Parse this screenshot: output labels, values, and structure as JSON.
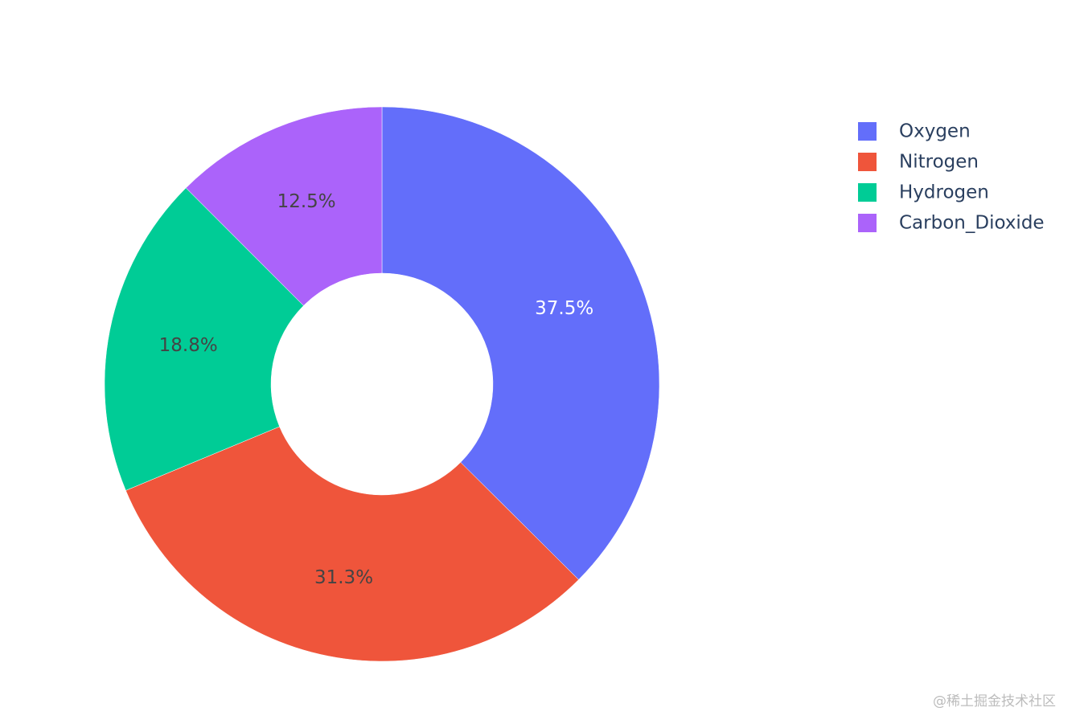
{
  "chart_data": {
    "type": "pie",
    "hole": 0.4,
    "direction": "clockwise",
    "sort": "descending",
    "labels": [
      "Oxygen",
      "Nitrogen",
      "Hydrogen",
      "Carbon_Dioxide"
    ],
    "values": [
      37.5,
      31.3,
      18.8,
      12.5
    ],
    "percent_labels": [
      "37.5%",
      "31.3%",
      "18.8%",
      "12.5%"
    ],
    "colors": [
      "#636efa",
      "#ef553b",
      "#00cc96",
      "#ab63fa"
    ],
    "text_colors": [
      "#ffffff",
      "#444444",
      "#444444",
      "#444444"
    ],
    "legend": {
      "position": "top-right",
      "items": [
        "Oxygen",
        "Nitrogen",
        "Hydrogen",
        "Carbon_Dioxide"
      ]
    }
  },
  "watermark": "@稀土掘金技术社区"
}
